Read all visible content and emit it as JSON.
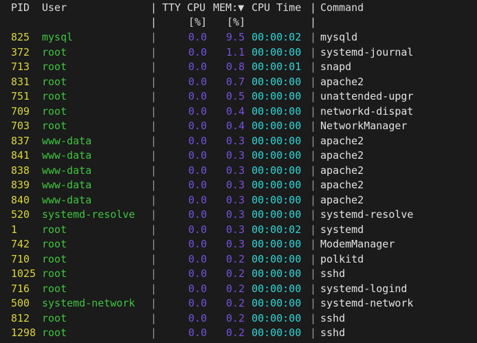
{
  "header": {
    "pid": "PID",
    "user": "User",
    "sep": "|",
    "tty": "TTY",
    "cpu": "CPU",
    "mem": "MEM:▼",
    "cpu_time": "CPU Time",
    "command": "Command",
    "cpu_unit": "[%]",
    "mem_unit": "[%]",
    "sort_column": "MEM",
    "sort_order": "descending"
  },
  "colors": {
    "background": "#1b1b1b",
    "pid": "#d9d63c",
    "user": "#3fc43f",
    "percent": "#7552de",
    "time": "#2fd6d6",
    "command": "#e2e2e2"
  },
  "processes": [
    {
      "pid": "825",
      "user": "mysql",
      "cpu": "0.0",
      "mem": "9.5",
      "time": "00:00:02",
      "command": "mysqld"
    },
    {
      "pid": "372",
      "user": "root",
      "cpu": "0.0",
      "mem": "1.1",
      "time": "00:00:00",
      "command": "systemd-journal"
    },
    {
      "pid": "713",
      "user": "root",
      "cpu": "0.0",
      "mem": "0.8",
      "time": "00:00:01",
      "command": "snapd"
    },
    {
      "pid": "831",
      "user": "root",
      "cpu": "0.0",
      "mem": "0.7",
      "time": "00:00:00",
      "command": "apache2"
    },
    {
      "pid": "751",
      "user": "root",
      "cpu": "0.0",
      "mem": "0.5",
      "time": "00:00:00",
      "command": "unattended-upgr"
    },
    {
      "pid": "709",
      "user": "root",
      "cpu": "0.0",
      "mem": "0.4",
      "time": "00:00:00",
      "command": "networkd-dispat"
    },
    {
      "pid": "703",
      "user": "root",
      "cpu": "0.0",
      "mem": "0.4",
      "time": "00:00:00",
      "command": "NetworkManager"
    },
    {
      "pid": "837",
      "user": "www-data",
      "cpu": "0.0",
      "mem": "0.3",
      "time": "00:00:00",
      "command": "apache2"
    },
    {
      "pid": "841",
      "user": "www-data",
      "cpu": "0.0",
      "mem": "0.3",
      "time": "00:00:00",
      "command": "apache2"
    },
    {
      "pid": "838",
      "user": "www-data",
      "cpu": "0.0",
      "mem": "0.3",
      "time": "00:00:00",
      "command": "apache2"
    },
    {
      "pid": "839",
      "user": "www-data",
      "cpu": "0.0",
      "mem": "0.3",
      "time": "00:00:00",
      "command": "apache2"
    },
    {
      "pid": "840",
      "user": "www-data",
      "cpu": "0.0",
      "mem": "0.3",
      "time": "00:00:00",
      "command": "apache2"
    },
    {
      "pid": "520",
      "user": "systemd-resolve",
      "cpu": "0.0",
      "mem": "0.3",
      "time": "00:00:00",
      "command": "systemd-resolve"
    },
    {
      "pid": "1",
      "user": "root",
      "cpu": "0.0",
      "mem": "0.3",
      "time": "00:00:02",
      "command": "systemd"
    },
    {
      "pid": "742",
      "user": "root",
      "cpu": "0.0",
      "mem": "0.3",
      "time": "00:00:00",
      "command": "ModemManager"
    },
    {
      "pid": "710",
      "user": "root",
      "cpu": "0.0",
      "mem": "0.2",
      "time": "00:00:00",
      "command": "polkitd"
    },
    {
      "pid": "1025",
      "user": "root",
      "cpu": "0.0",
      "mem": "0.2",
      "time": "00:00:00",
      "command": "sshd"
    },
    {
      "pid": "716",
      "user": "root",
      "cpu": "0.0",
      "mem": "0.2",
      "time": "00:00:00",
      "command": "systemd-logind"
    },
    {
      "pid": "500",
      "user": "systemd-network",
      "cpu": "0.0",
      "mem": "0.2",
      "time": "00:00:00",
      "command": "systemd-network"
    },
    {
      "pid": "812",
      "user": "root",
      "cpu": "0.0",
      "mem": "0.2",
      "time": "00:00:00",
      "command": "sshd"
    },
    {
      "pid": "1298",
      "user": "root",
      "cpu": "0.0",
      "mem": "0.2",
      "time": "00:00:00",
      "command": "sshd"
    }
  ]
}
